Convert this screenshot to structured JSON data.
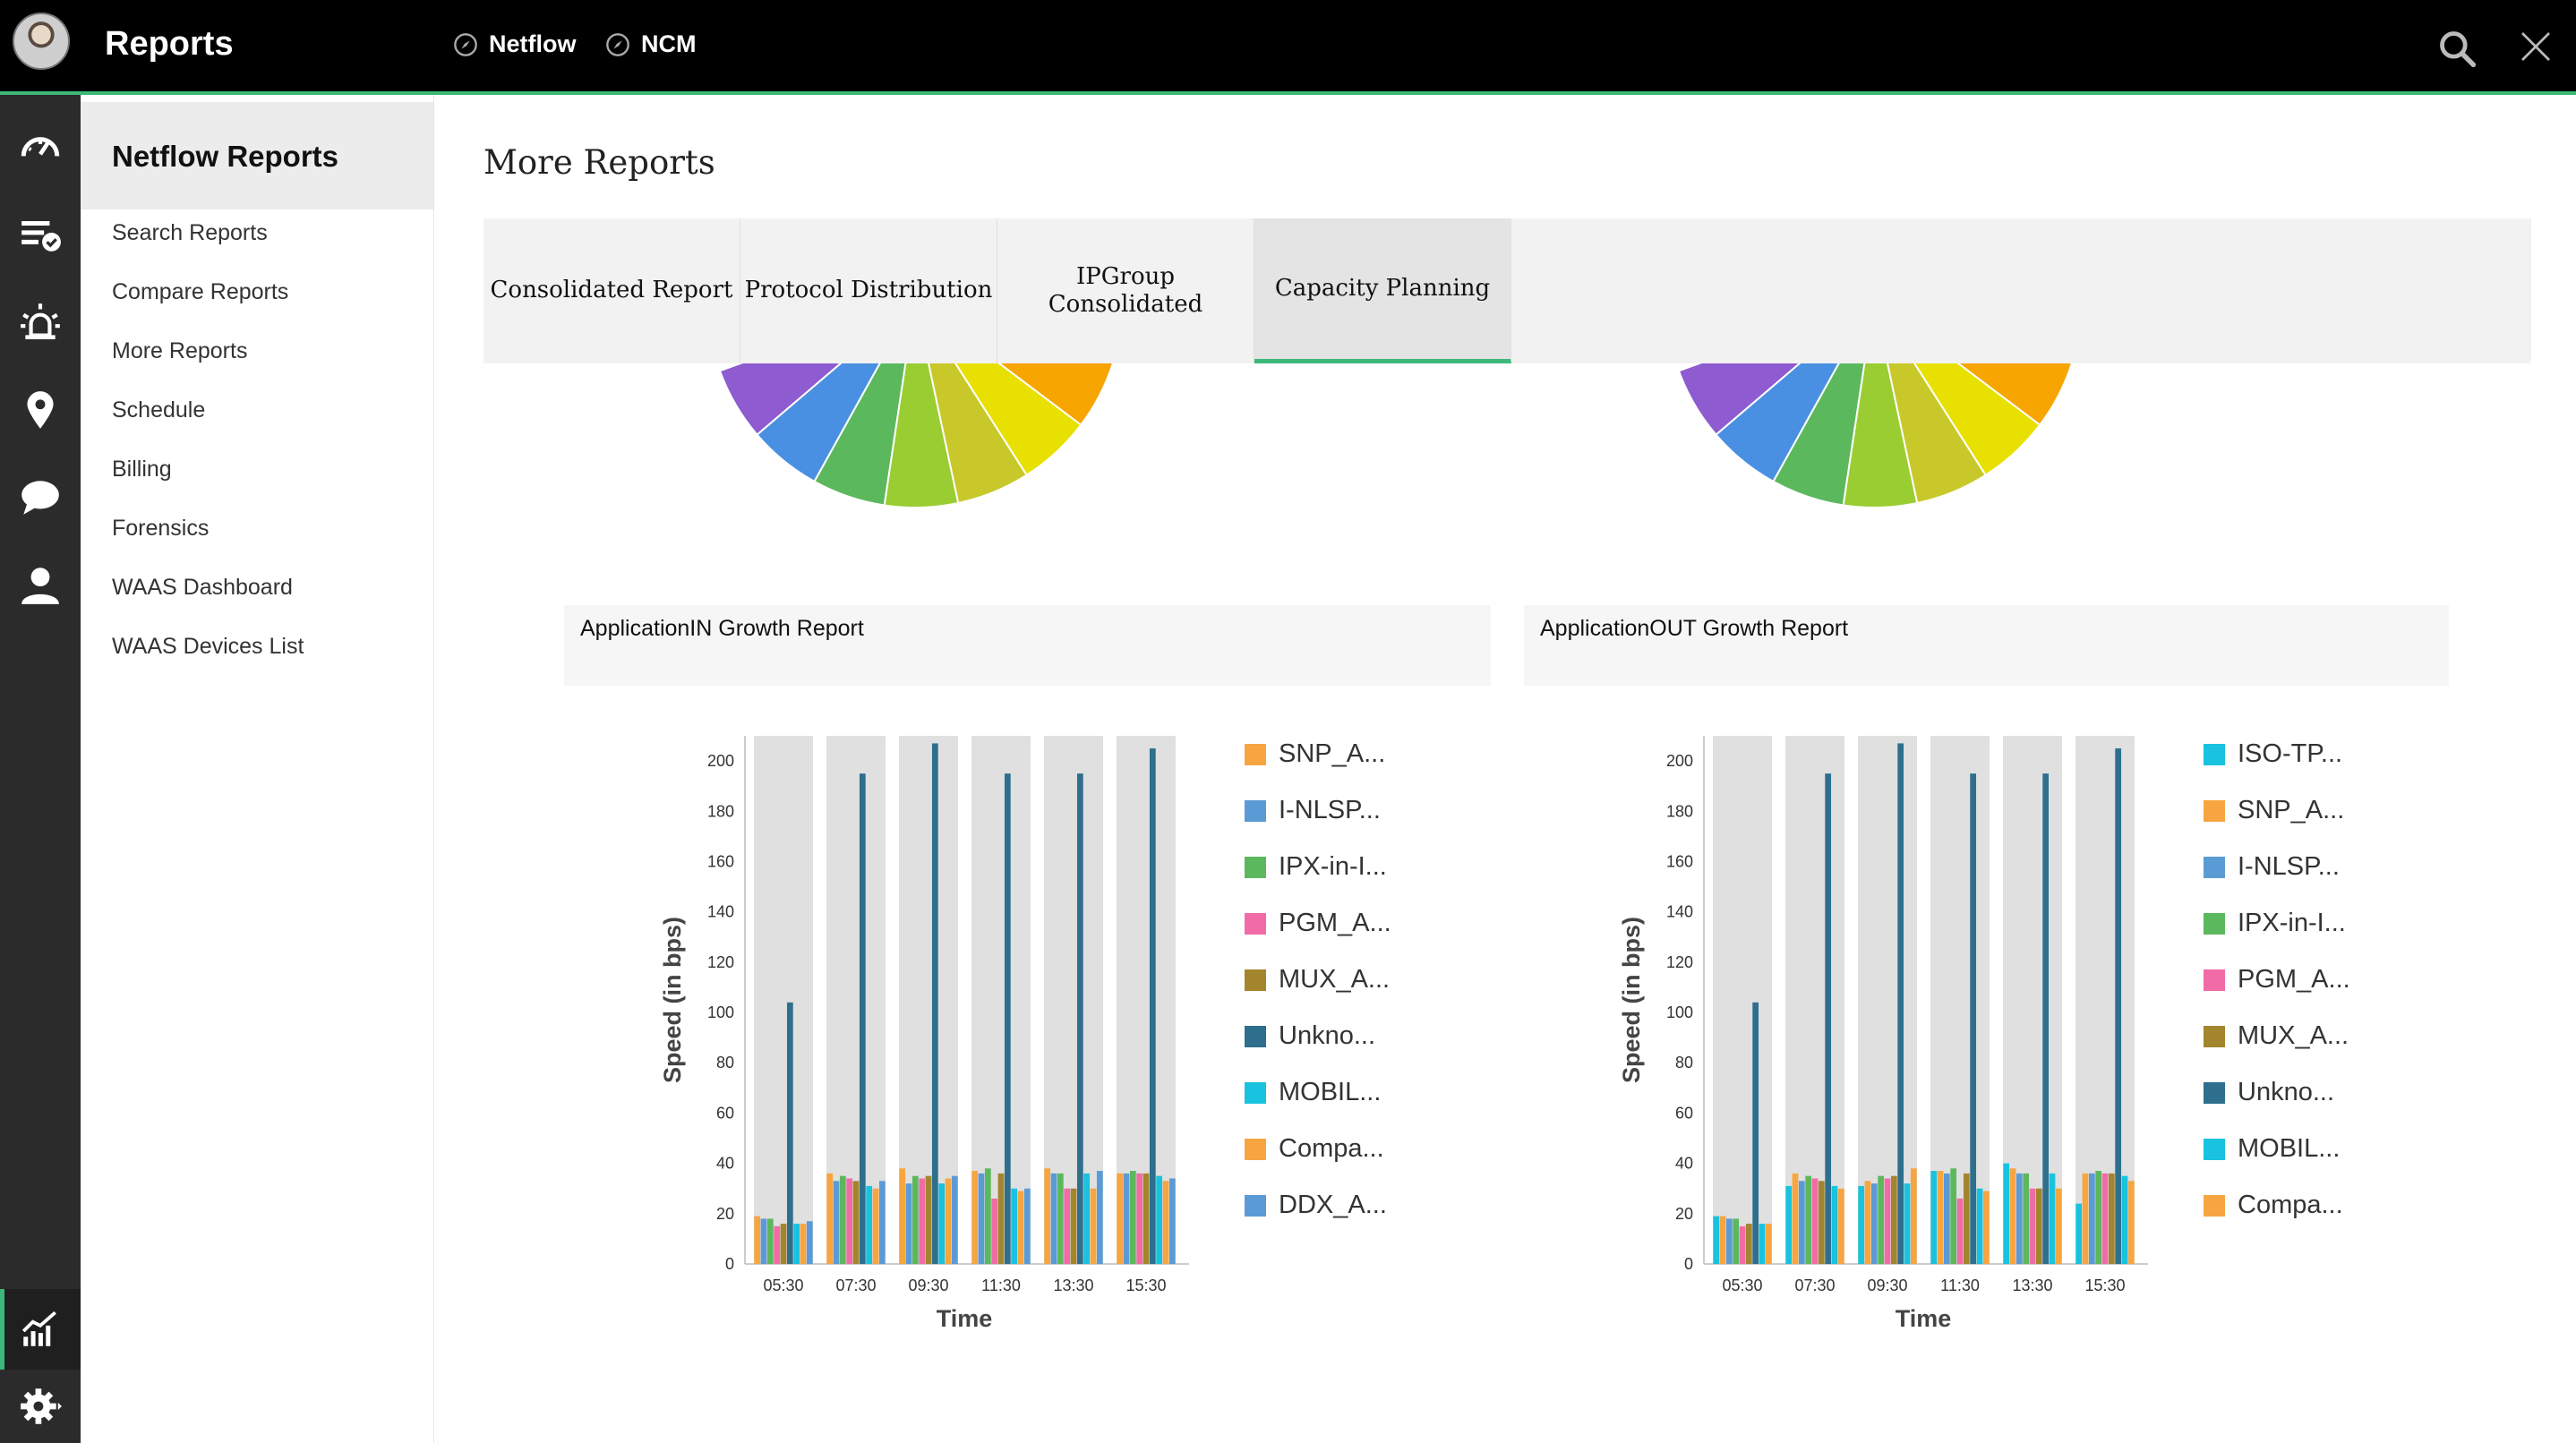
{
  "header": {
    "title": "Reports",
    "tabs": [
      {
        "label": "Netflow"
      },
      {
        "label": "NCM"
      }
    ]
  },
  "rail": {
    "icons": [
      "dashboard-icon",
      "alarms-list-icon",
      "alert-siren-icon",
      "map-pin-icon",
      "chat-icon",
      "user-icon",
      "reports-chart-icon",
      "settings-gear-icon"
    ]
  },
  "sidebar": {
    "title": "Netflow Reports",
    "items": [
      {
        "label": "Search Reports"
      },
      {
        "label": "Compare Reports"
      },
      {
        "label": "More Reports"
      },
      {
        "label": "Schedule"
      },
      {
        "label": "Billing"
      },
      {
        "label": "Forensics"
      },
      {
        "label": "WAAS Dashboard"
      },
      {
        "label": "WAAS Devices List"
      }
    ]
  },
  "main": {
    "title": "More Reports",
    "tabs": [
      {
        "label": "Consolidated Report",
        "active": false
      },
      {
        "label": "Protocol Distribution",
        "active": false
      },
      {
        "label": "IPGroup Consolidated",
        "active": false
      },
      {
        "label": "Capacity Planning",
        "active": true
      }
    ],
    "cards": [
      {
        "title": "ApplicationIN Growth Report"
      },
      {
        "title": "ApplicationOUT Growth Report"
      }
    ]
  },
  "colors": {
    "accent": "#3cb878",
    "topbar": "#000000",
    "rail": "#2b2b2b",
    "bar_bg": "#e0e0e0"
  },
  "chart_data": [
    {
      "type": "bar",
      "title": "ApplicationIN Growth Report",
      "xlabel": "Time",
      "ylabel": "Speed (in bps)",
      "ylim": [
        0,
        210
      ],
      "yticks": [
        0,
        20,
        40,
        60,
        80,
        100,
        120,
        140,
        160,
        180,
        200
      ],
      "categories": [
        "05:30",
        "07:30",
        "09:30",
        "11:30",
        "13:30",
        "15:30"
      ],
      "series": [
        {
          "name": "SNP_A...",
          "color": "#f7a541",
          "values": [
            19,
            36,
            38,
            37,
            38,
            36
          ]
        },
        {
          "name": "I-NLSP...",
          "color": "#5b9bd5",
          "values": [
            18,
            33,
            32,
            36,
            36,
            36
          ]
        },
        {
          "name": "IPX-in-I...",
          "color": "#5cb85c",
          "values": [
            18,
            35,
            35,
            38,
            36,
            37
          ]
        },
        {
          "name": "PGM_A...",
          "color": "#f16ca7",
          "values": [
            15,
            34,
            34,
            26,
            30,
            36
          ]
        },
        {
          "name": "MUX_A...",
          "color": "#a3852e",
          "values": [
            16,
            33,
            35,
            36,
            30,
            36
          ]
        },
        {
          "name": "Unkno...",
          "color": "#2e6f8e",
          "values": [
            104,
            195,
            207,
            195,
            195,
            205
          ]
        },
        {
          "name": "MOBIL...",
          "color": "#19c2de",
          "values": [
            16,
            31,
            32,
            30,
            36,
            35
          ]
        },
        {
          "name": "Compa...",
          "color": "#f7a541",
          "values": [
            16,
            30,
            34,
            29,
            30,
            33
          ]
        },
        {
          "name": "DDX_A...",
          "color": "#5b9bd5",
          "values": [
            17,
            33,
            35,
            30,
            37,
            34
          ]
        }
      ]
    },
    {
      "type": "bar",
      "title": "ApplicationOUT Growth Report",
      "xlabel": "Time",
      "ylabel": "Speed (in bps)",
      "ylim": [
        0,
        210
      ],
      "yticks": [
        0,
        20,
        40,
        60,
        80,
        100,
        120,
        140,
        160,
        180,
        200
      ],
      "categories": [
        "05:30",
        "07:30",
        "09:30",
        "11:30",
        "13:30",
        "15:30"
      ],
      "series": [
        {
          "name": "ISO-TP...",
          "color": "#19c2de",
          "values": [
            19,
            31,
            31,
            37,
            40,
            24
          ]
        },
        {
          "name": "SNP_A...",
          "color": "#f7a541",
          "values": [
            19,
            36,
            33,
            37,
            38,
            36
          ]
        },
        {
          "name": "I-NLSP...",
          "color": "#5b9bd5",
          "values": [
            18,
            33,
            32,
            36,
            36,
            36
          ]
        },
        {
          "name": "IPX-in-I...",
          "color": "#5cb85c",
          "values": [
            18,
            35,
            35,
            38,
            36,
            37
          ]
        },
        {
          "name": "PGM_A...",
          "color": "#f16ca7",
          "values": [
            15,
            34,
            34,
            26,
            30,
            36
          ]
        },
        {
          "name": "MUX_A...",
          "color": "#a3852e",
          "values": [
            16,
            33,
            35,
            36,
            30,
            36
          ]
        },
        {
          "name": "Unkno...",
          "color": "#2e6f8e",
          "values": [
            104,
            195,
            207,
            195,
            195,
            205
          ]
        },
        {
          "name": "MOBIL...",
          "color": "#19c2de",
          "values": [
            16,
            31,
            32,
            30,
            36,
            35
          ]
        },
        {
          "name": "Compa...",
          "color": "#f7a541",
          "values": [
            16,
            30,
            38,
            29,
            30,
            33
          ]
        }
      ]
    }
  ]
}
